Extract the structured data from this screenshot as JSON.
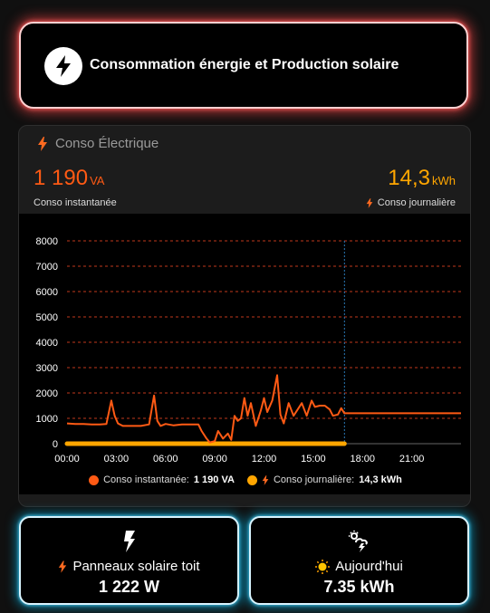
{
  "header": {
    "title": "Consommation énergie et Production solaire",
    "icon": "flash-circle-icon"
  },
  "conso_card": {
    "title": "Conso Électrique",
    "instant": {
      "value": "1 190",
      "unit": "VA",
      "label": "Conso instantanée"
    },
    "daily": {
      "value": "14,3",
      "unit": "kWh",
      "label": "Conso journalière"
    },
    "legend": {
      "instant_label": "Conso instantanée:",
      "instant_value": "1 190 VA",
      "daily_label": "Conso journalière:",
      "daily_value": "14,3 kWh"
    }
  },
  "tiles": {
    "solar_roof": {
      "label": "Panneaux solaire toit",
      "value": "1 222 W",
      "icon": "flash-icon"
    },
    "today": {
      "label": "Aujourd'hui",
      "value": "7.35 kWh",
      "icon": "weather-partly-lightning-icon"
    }
  },
  "colors": {
    "instant": "#ff5a14",
    "daily": "#ffa600",
    "grid": "#c0391b",
    "now_line": "#2a7ab8"
  },
  "chart_data": {
    "type": "line",
    "x_ticks": [
      "00:00",
      "03:00",
      "06:00",
      "09:00",
      "12:00",
      "15:00",
      "18:00",
      "21:00"
    ],
    "y_ticks": [
      0,
      1000,
      2000,
      3000,
      4000,
      5000,
      6000,
      7000,
      8000
    ],
    "xlim": [
      0,
      24
    ],
    "ylim": [
      0,
      8000
    ],
    "grid": true,
    "legend_position": "bottom",
    "now_marker_hour": 16.9,
    "series": [
      {
        "name": "Conso instantanée",
        "x": [
          0,
          0.5,
          1,
          1.5,
          2,
          2.4,
          2.7,
          2.9,
          3.1,
          3.4,
          3.8,
          4.5,
          5,
          5.3,
          5.5,
          5.7,
          6,
          6.5,
          7,
          7.5,
          8,
          8.2,
          8.5,
          8.7,
          9,
          9.2,
          9.5,
          9.8,
          10,
          10.2,
          10.4,
          10.6,
          10.8,
          11,
          11.2,
          11.5,
          11.8,
          12,
          12.2,
          12.5,
          12.8,
          13,
          13.2,
          13.5,
          13.8,
          14,
          14.3,
          14.6,
          14.9,
          15.1,
          15.4,
          15.7,
          16,
          16.2,
          16.5,
          16.7,
          16.9,
          17,
          18,
          20,
          22,
          24
        ],
        "y": [
          800,
          780,
          780,
          760,
          760,
          780,
          1700,
          1100,
          800,
          700,
          700,
          700,
          760,
          1900,
          900,
          700,
          780,
          720,
          760,
          760,
          760,
          500,
          200,
          50,
          100,
          500,
          200,
          400,
          150,
          1100,
          900,
          1000,
          1800,
          1100,
          1600,
          700,
          1300,
          1800,
          1250,
          1700,
          2700,
          1150,
          800,
          1600,
          1100,
          1300,
          1600,
          1100,
          1700,
          1450,
          1500,
          1500,
          1350,
          1100,
          1150,
          1400,
          1200,
          1200,
          1200,
          1200,
          1200,
          1200
        ]
      },
      {
        "name": "Conso journalière",
        "x": [
          0,
          2,
          4,
          6,
          8,
          10,
          12,
          14,
          16,
          16.9
        ],
        "y": [
          0,
          0,
          0,
          0,
          0,
          0,
          0,
          0,
          0,
          0
        ]
      }
    ]
  }
}
